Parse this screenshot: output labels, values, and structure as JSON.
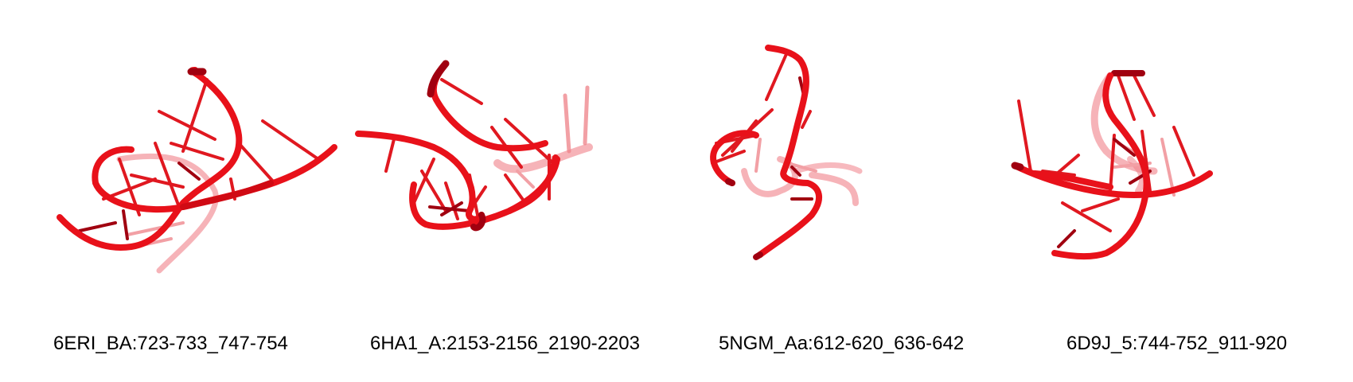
{
  "colors": {
    "backbone": "#e8111a",
    "backbone_dark": "#a00010",
    "backbone_far": "#f08088",
    "rung": "#e01820",
    "rung_far": "#f2a0a5"
  },
  "panels": [
    {
      "caption": "6ERI_BA:723-733_747-754"
    },
    {
      "caption": "6HA1_A:2153-2156_2190-2203"
    },
    {
      "caption": "5NGM_Aa:612-620_636-642"
    },
    {
      "caption": "6D9J_5:744-752_911-920"
    }
  ]
}
